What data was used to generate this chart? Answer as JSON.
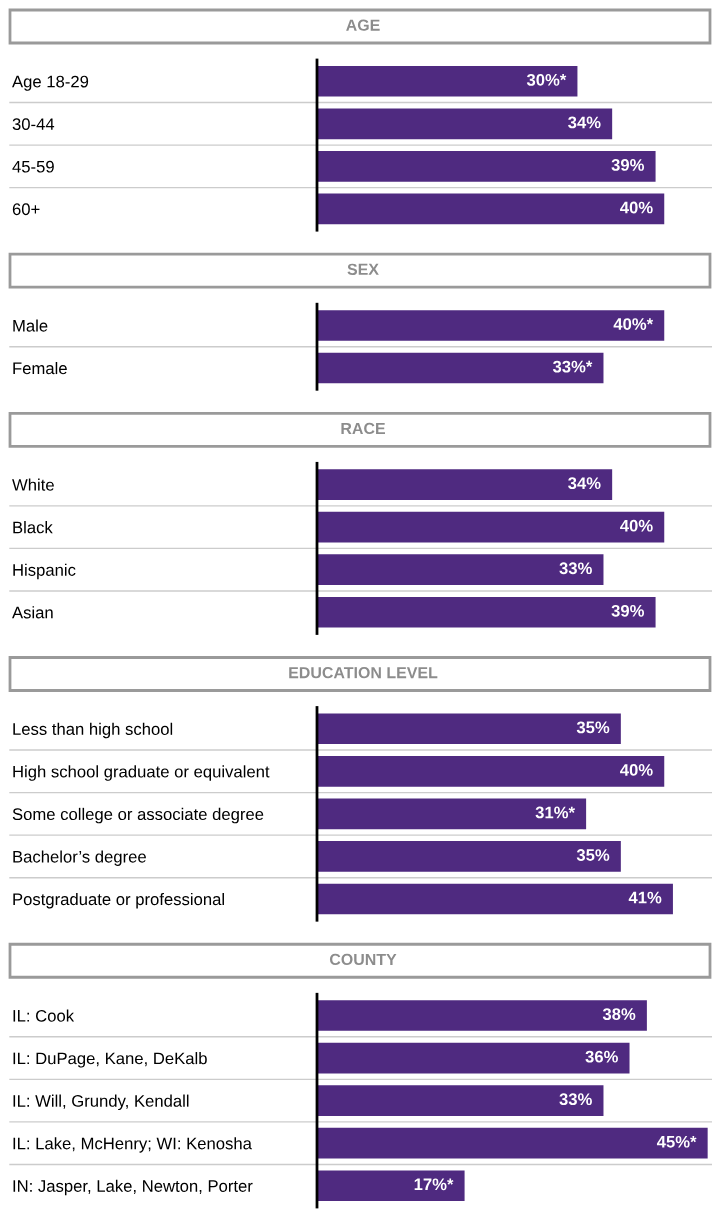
{
  "chart_data": [
    {
      "type": "bar",
      "orientation": "horizontal",
      "title": "AGE",
      "categories": [
        "Age 18-29",
        "30-44",
        "45-59",
        "60+"
      ],
      "values": [
        30,
        34,
        39,
        40
      ],
      "value_labels": [
        "30%*",
        "34%",
        "39%",
        "40%"
      ],
      "color": "#4f2a80",
      "xlim": [
        0,
        45.5
      ],
      "tick_labels": "y",
      "grid": false,
      "legend": false
    },
    {
      "type": "bar",
      "orientation": "horizontal",
      "title": "SEX",
      "categories": [
        "Male",
        "Female"
      ],
      "values": [
        40,
        33
      ],
      "value_labels": [
        "40%*",
        "33%*"
      ],
      "color": "#4f2a80",
      "xlim": [
        0,
        45.5
      ],
      "tick_labels": "y",
      "grid": false,
      "legend": false
    },
    {
      "type": "bar",
      "orientation": "horizontal",
      "title": "RACE",
      "categories": [
        "White",
        "Black",
        "Hispanic",
        "Asian"
      ],
      "values": [
        34,
        40,
        33,
        39
      ],
      "value_labels": [
        "34%",
        "40%",
        "33%",
        "39%"
      ],
      "color": "#4f2a80",
      "xlim": [
        0,
        45.5
      ],
      "tick_labels": "y",
      "grid": false,
      "legend": false
    },
    {
      "type": "bar",
      "orientation": "horizontal",
      "title": "EDUCATION LEVEL",
      "categories": [
        "Less than high school",
        "High school graduate or equivalent",
        "Some college or associate degree",
        "Bachelor’s degree",
        "Postgraduate or professional"
      ],
      "values": [
        35,
        40,
        31,
        35,
        41
      ],
      "value_labels": [
        "35%",
        "40%",
        "31%*",
        "35%",
        "41%"
      ],
      "color": "#4f2a80",
      "xlim": [
        0,
        45.5
      ],
      "tick_labels": "y",
      "grid": false,
      "legend": false
    },
    {
      "type": "bar",
      "orientation": "horizontal",
      "title": "COUNTY",
      "categories": [
        "IL: Cook",
        "IL: DuPage, Kane, DeKalb",
        "IL: Will, Grundy, Kendall",
        "IL: Lake, McHenry; WI: Kenosha",
        "IN: Jasper, Lake, Newton, Porter"
      ],
      "values": [
        38,
        36,
        33,
        45,
        17
      ],
      "value_labels": [
        "38%",
        "36%",
        "33%",
        "45%*",
        "17%*"
      ],
      "color": "#4f2a80",
      "xlim": [
        0,
        45.5
      ],
      "tick_labels": "y",
      "grid": false,
      "legend": false
    }
  ]
}
